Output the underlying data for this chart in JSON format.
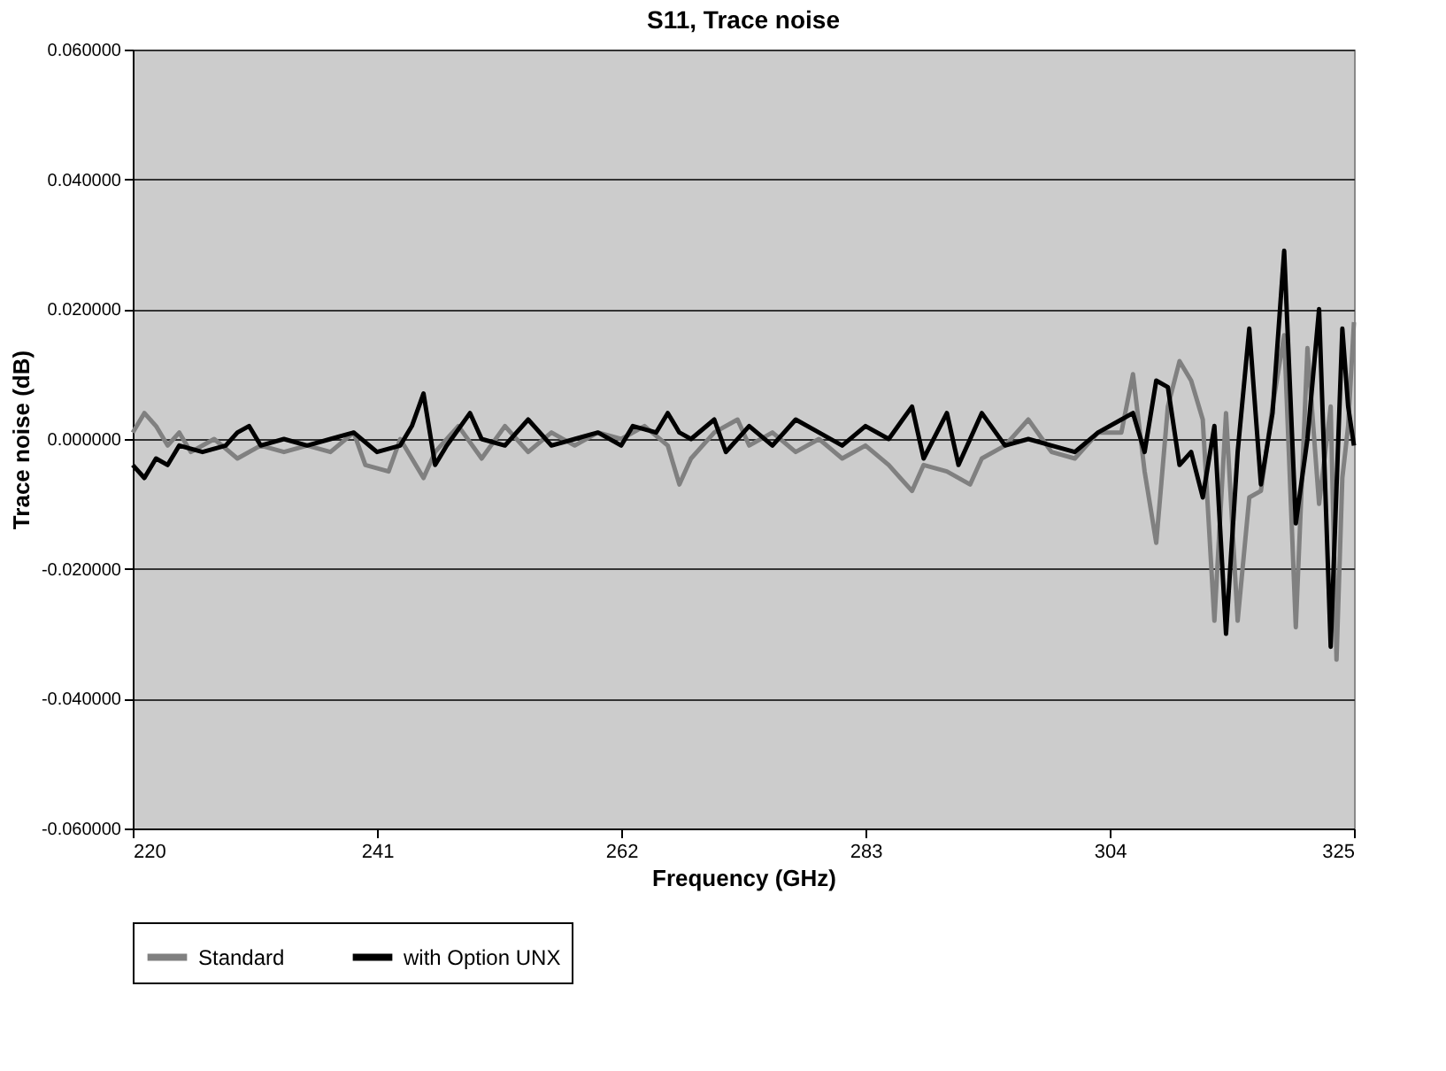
{
  "chart_data": {
    "type": "line",
    "title": "S11, Trace noise",
    "xlabel": "Frequency (GHz)",
    "ylabel": "Trace noise (dB)",
    "xlim": [
      220,
      325
    ],
    "xticks": [
      220,
      241,
      262,
      283,
      304,
      325
    ],
    "ylim": [
      -0.06,
      0.06
    ],
    "yticks": [
      {
        "value": -0.06,
        "label": "-0.060000"
      },
      {
        "value": -0.04,
        "label": "-0.040000"
      },
      {
        "value": -0.02,
        "label": "-0.020000"
      },
      {
        "value": 0,
        "label": "0.000000"
      },
      {
        "value": 0.02,
        "label": "0.020000"
      },
      {
        "value": 0.04,
        "label": "0.040000"
      },
      {
        "value": 0.06,
        "label": "0.060000"
      }
    ],
    "grid": "y",
    "legend": "bottom",
    "marker": "none",
    "line_style": "solid",
    "series": [
      {
        "name": "Standard",
        "color": "#808080",
        "x": [
          220,
          221,
          222,
          223,
          224,
          225,
          227,
          229,
          231,
          233,
          235,
          237,
          239,
          240,
          242,
          243,
          245,
          246,
          248,
          250,
          252,
          254,
          256,
          258,
          260,
          262,
          264,
          266,
          267,
          268,
          270,
          272,
          273,
          275,
          277,
          279,
          281,
          283,
          285,
          287,
          288,
          290,
          292,
          293,
          295,
          297,
          299,
          301,
          303,
          305,
          306,
          307,
          308,
          309,
          310,
          311,
          312,
          313,
          314,
          315,
          316,
          317,
          318,
          319,
          320,
          321,
          322,
          323,
          323.5,
          324,
          324.5,
          325
        ],
        "values": [
          0.001,
          0.004,
          0.002,
          -0.001,
          0.001,
          -0.002,
          0,
          -0.003,
          -0.001,
          -0.002,
          -0.001,
          -0.002,
          0.001,
          -0.004,
          -0.005,
          0,
          -0.006,
          -0.002,
          0.002,
          -0.003,
          0.002,
          -0.002,
          0.001,
          -0.001,
          0.001,
          0,
          0.002,
          -0.001,
          -0.007,
          -0.003,
          0.001,
          0.003,
          -0.001,
          0.001,
          -0.002,
          0,
          -0.003,
          -0.001,
          -0.004,
          -0.008,
          -0.004,
          -0.005,
          -0.007,
          -0.003,
          -0.001,
          0.003,
          -0.002,
          -0.003,
          0.001,
          0.001,
          0.01,
          -0.005,
          -0.016,
          0.005,
          0.012,
          0.009,
          0.003,
          -0.028,
          0.004,
          -0.028,
          -0.009,
          -0.008,
          0.005,
          0.016,
          -0.029,
          0.014,
          -0.01,
          0.005,
          -0.034,
          -0.006,
          0.002,
          0.018
        ]
      },
      {
        "name": "with Option UNX",
        "color": "#000000",
        "x": [
          220,
          221,
          222,
          223,
          224,
          226,
          228,
          229,
          230,
          231,
          233,
          235,
          237,
          239,
          241,
          243,
          244,
          245,
          246,
          247,
          249,
          250,
          252,
          254,
          256,
          258,
          260,
          262,
          263,
          265,
          266,
          267,
          268,
          270,
          271,
          273,
          275,
          277,
          279,
          281,
          283,
          285,
          287,
          288,
          290,
          291,
          293,
          295,
          297,
          299,
          301,
          303,
          305,
          306,
          307,
          308,
          309,
          310,
          311,
          312,
          313,
          314,
          315,
          316,
          317,
          318,
          319,
          320,
          321,
          322,
          323,
          324,
          324.5,
          325
        ],
        "values": [
          -0.004,
          -0.006,
          -0.003,
          -0.004,
          -0.001,
          -0.002,
          -0.001,
          0.001,
          0.002,
          -0.001,
          0,
          -0.001,
          0,
          0.001,
          -0.002,
          -0.001,
          0.002,
          0.007,
          -0.004,
          -0.001,
          0.004,
          0,
          -0.001,
          0.003,
          -0.001,
          0,
          0.001,
          -0.001,
          0.002,
          0.001,
          0.004,
          0.001,
          0,
          0.003,
          -0.002,
          0.002,
          -0.001,
          0.003,
          0.001,
          -0.001,
          0.002,
          0,
          0.005,
          -0.003,
          0.004,
          -0.004,
          0.004,
          -0.001,
          0,
          -0.001,
          -0.002,
          0.001,
          0.003,
          0.004,
          -0.002,
          0.009,
          0.008,
          -0.004,
          -0.002,
          -0.009,
          0.002,
          -0.03,
          -0.002,
          0.017,
          -0.007,
          0.004,
          0.029,
          -0.013,
          0,
          0.02,
          -0.032,
          0.017,
          0.005,
          -0.001
        ]
      }
    ]
  }
}
